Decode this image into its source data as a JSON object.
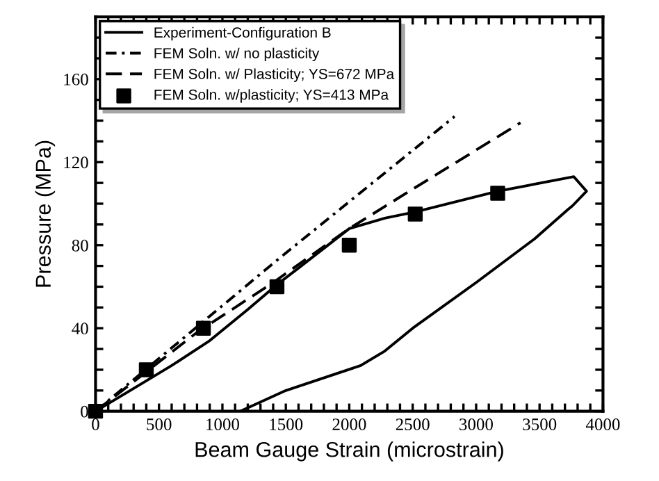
{
  "chart_data": {
    "type": "line",
    "xlabel": "Beam Gauge Strain (microstrain)",
    "ylabel": "Pressure (MPa)",
    "xlim": [
      0,
      4000
    ],
    "ylim": [
      0,
      190
    ],
    "xticks": [
      0,
      {
        "value": 100,
        "label": null
      },
      {
        "value": 200,
        "label": null
      },
      {
        "value": 300,
        "label": null
      },
      {
        "value": 400,
        "label": null
      },
      500,
      {
        "value": 600,
        "label": null
      },
      {
        "value": 700,
        "label": null
      },
      {
        "value": 800,
        "label": null
      },
      {
        "value": 900,
        "label": null
      },
      1000,
      {
        "value": 1100,
        "label": null
      },
      {
        "value": 1200,
        "label": null
      },
      {
        "value": 1300,
        "label": null
      },
      {
        "value": 1400,
        "label": null
      },
      1500,
      {
        "value": 1600,
        "label": null
      },
      {
        "value": 1700,
        "label": null
      },
      {
        "value": 1800,
        "label": null
      },
      {
        "value": 1900,
        "label": null
      },
      2000,
      {
        "value": 2100,
        "label": null
      },
      {
        "value": 2200,
        "label": null
      },
      {
        "value": 2300,
        "label": null
      },
      {
        "value": 2400,
        "label": null
      },
      2500,
      {
        "value": 2600,
        "label": null
      },
      {
        "value": 2700,
        "label": null
      },
      {
        "value": 2800,
        "label": null
      },
      {
        "value": 2900,
        "label": null
      },
      3000,
      {
        "value": 3100,
        "label": null
      },
      {
        "value": 3200,
        "label": null
      },
      {
        "value": 3300,
        "label": null
      },
      {
        "value": 3400,
        "label": null
      },
      3500,
      {
        "value": 3600,
        "label": null
      },
      {
        "value": 3700,
        "label": null
      },
      {
        "value": 3800,
        "label": null
      },
      {
        "value": 3900,
        "label": null
      },
      4000
    ],
    "yticks": [
      0,
      {
        "value": 10,
        "label": null
      },
      {
        "value": 20,
        "label": null
      },
      {
        "value": 30,
        "label": null
      },
      40,
      {
        "value": 50,
        "label": null
      },
      {
        "value": 60,
        "label": null
      },
      {
        "value": 70,
        "label": null
      },
      80,
      {
        "value": 90,
        "label": null
      },
      {
        "value": 100,
        "label": null
      },
      {
        "value": 110,
        "label": null
      },
      120,
      {
        "value": 130,
        "label": null
      },
      {
        "value": 140,
        "label": null
      },
      {
        "value": 150,
        "label": null
      },
      160,
      {
        "value": 170,
        "label": null
      },
      {
        "value": 180,
        "label": null
      }
    ],
    "grid": false,
    "legend": "top left",
    "series": [
      {
        "name": "Experiment-Configuration B",
        "color": "#000000",
        "line_style": "solid",
        "marker": "none",
        "x": [
          0,
          300,
          600,
          900,
          1200,
          1430,
          1600,
          2000,
          2280,
          2520,
          3170,
          3770,
          3870,
          3760,
          3720,
          3460,
          3000,
          2500,
          2280,
          2090,
          1500,
          1140
        ],
        "values": [
          0,
          11,
          22,
          34,
          49,
          61,
          69,
          88,
          93,
          96,
          106,
          113,
          106,
          99,
          97,
          83,
          62,
          40,
          29,
          22,
          10,
          0
        ]
      },
      {
        "name": "FEM Soln. w/ no plasticity",
        "color": "#000000",
        "line_style": "dashdot",
        "marker": "none",
        "x": [
          0,
          1435,
          2830
        ],
        "values": [
          0,
          73,
          142
        ]
      },
      {
        "name": "FEM Soln. w/ Plasticity; YS=672 MPa",
        "color": "#000000",
        "line_style": "dashed",
        "marker": "none",
        "x": [
          0,
          800,
          1400,
          2000,
          2500,
          3350
        ],
        "values": [
          0,
          38,
          62,
          88,
          107,
          139
        ]
      },
      {
        "name": "FEM Soln. w/plasticity; YS=413 MPa",
        "type": "scatter",
        "color": "#000000",
        "marker": "square",
        "x": [
          0,
          400,
          850,
          1430,
          2000,
          2520,
          3170
        ],
        "values": [
          0,
          20,
          40,
          60,
          80,
          95,
          105
        ]
      }
    ]
  }
}
